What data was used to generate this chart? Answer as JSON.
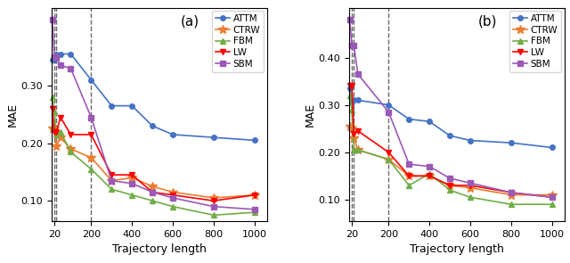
{
  "colors": {
    "ATTM": "#4472c4",
    "CTRW": "#ed7d31",
    "FBM": "#70ad47",
    "LW": "#ff0000",
    "SBM": "#9b59b6"
  },
  "markers": {
    "ATTM": "o",
    "CTRW": "*",
    "FBM": "^",
    "LW": "v",
    "SBM": "s"
  },
  "panel_a": {
    "ATTM": {
      "x": [
        10,
        20,
        30,
        50,
        100,
        200,
        300,
        400,
        500,
        600,
        800,
        1000
      ],
      "y": [
        0.345,
        0.345,
        0.355,
        0.355,
        0.355,
        0.31,
        0.265,
        0.265,
        0.23,
        0.215,
        0.21,
        0.205
      ]
    },
    "CTRW": {
      "x": [
        10,
        20,
        30,
        50,
        100,
        200,
        300,
        400,
        500,
        600,
        800,
        1000
      ],
      "y": [
        0.225,
        0.225,
        0.195,
        0.21,
        0.19,
        0.175,
        0.135,
        0.14,
        0.125,
        0.115,
        0.105,
        0.11
      ]
    },
    "FBM": {
      "x": [
        10,
        20,
        30,
        50,
        100,
        200,
        300,
        400,
        500,
        600,
        800,
        1000
      ],
      "y": [
        0.28,
        0.255,
        0.215,
        0.22,
        0.185,
        0.155,
        0.12,
        0.11,
        0.1,
        0.09,
        0.075,
        0.08
      ]
    },
    "LW": {
      "x": [
        10,
        20,
        30,
        50,
        100,
        200,
        300,
        400,
        500,
        600,
        800,
        1000
      ],
      "y": [
        0.26,
        0.22,
        0.22,
        0.245,
        0.215,
        0.215,
        0.145,
        0.145,
        0.115,
        0.11,
        0.1,
        0.11
      ]
    },
    "SBM": {
      "x": [
        10,
        20,
        30,
        50,
        100,
        200,
        300,
        400,
        500,
        600,
        800,
        1000
      ],
      "y": [
        0.415,
        0.35,
        0.35,
        0.335,
        0.33,
        0.245,
        0.135,
        0.13,
        0.115,
        0.105,
        0.09,
        0.085
      ]
    }
  },
  "panel_b": {
    "ATTM": {
      "x": [
        10,
        20,
        30,
        50,
        200,
        300,
        400,
        500,
        600,
        800,
        1000
      ],
      "y": [
        0.335,
        0.305,
        0.31,
        0.31,
        0.3,
        0.27,
        0.265,
        0.235,
        0.225,
        0.22,
        0.21
      ]
    },
    "CTRW": {
      "x": [
        10,
        20,
        30,
        50,
        200,
        300,
        400,
        500,
        600,
        800,
        1000
      ],
      "y": [
        0.255,
        0.25,
        0.23,
        0.205,
        0.185,
        0.15,
        0.15,
        0.13,
        0.125,
        0.11,
        0.11
      ]
    },
    "FBM": {
      "x": [
        10,
        20,
        30,
        50,
        200,
        300,
        400,
        500,
        600,
        800,
        1000
      ],
      "y": [
        0.32,
        0.29,
        0.205,
        0.205,
        0.185,
        0.13,
        0.155,
        0.12,
        0.105,
        0.09,
        0.09
      ]
    },
    "LW": {
      "x": [
        10,
        20,
        30,
        50,
        200,
        300,
        400,
        500,
        600,
        800,
        1000
      ],
      "y": [
        0.34,
        0.34,
        0.24,
        0.245,
        0.2,
        0.15,
        0.15,
        0.13,
        0.13,
        0.115,
        0.105
      ]
    },
    "SBM": {
      "x": [
        10,
        20,
        30,
        50,
        200,
        300,
        400,
        500,
        600,
        800,
        1000
      ],
      "y": [
        0.48,
        0.425,
        0.425,
        0.365,
        0.285,
        0.175,
        0.17,
        0.145,
        0.135,
        0.115,
        0.105
      ]
    }
  },
  "vlines": [
    20,
    30,
    200
  ],
  "xticks": [
    20,
    200,
    400,
    600,
    800,
    1000
  ],
  "xlim": [
    5,
    1060
  ],
  "xlabel": "Trajectory length",
  "ylabel": "MAE",
  "title_a": "(a)",
  "title_b": "(b)",
  "ylim_a": [
    0.065,
    0.435
  ],
  "ylim_b": [
    0.055,
    0.505
  ],
  "yticks_a": [
    0.1,
    0.2,
    0.3
  ],
  "yticks_b": [
    0.1,
    0.2,
    0.3,
    0.4
  ]
}
